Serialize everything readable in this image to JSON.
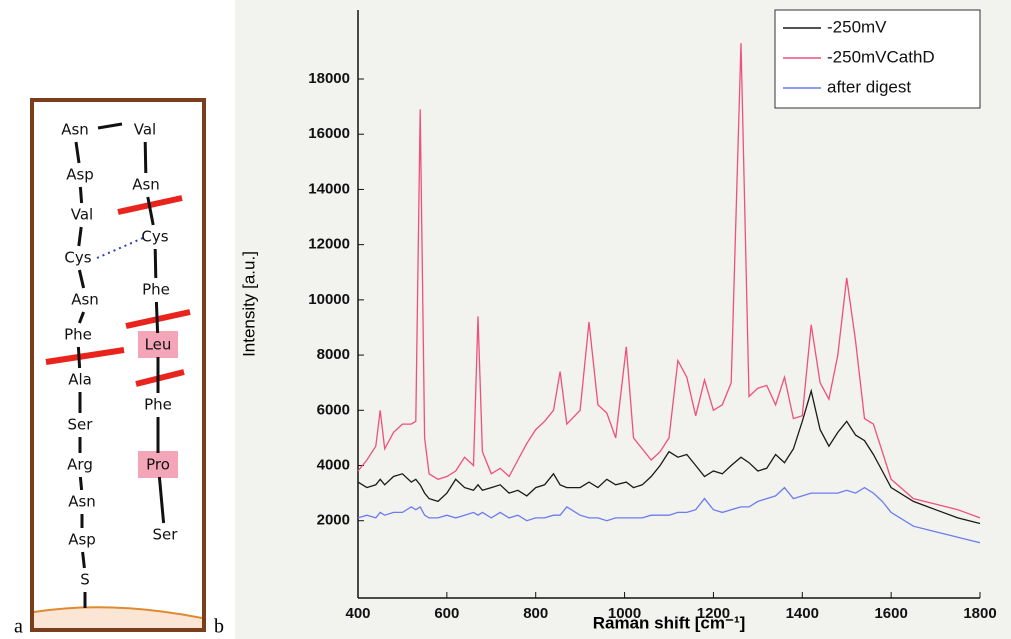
{
  "panel_a": {
    "label": "a",
    "left_chain": [
      "Asn",
      "Asp",
      "Val",
      "Cys",
      "Asn",
      "Phe",
      "Ala",
      "Ser",
      "Arg",
      "Asn",
      "Asp",
      "S"
    ],
    "right_chain": [
      "Val",
      "Asn",
      "Cys",
      "Phe",
      "Leu",
      "Phe",
      "Pro",
      "Ser"
    ]
  },
  "panel_b_label": "b",
  "chart_data": {
    "type": "line",
    "x_label": "Raman shift [cm⁻¹]",
    "y_label": "Intensity [a.u.]",
    "x": [
      400,
      420,
      440,
      450,
      460,
      480,
      500,
      520,
      530,
      540,
      550,
      560,
      580,
      600,
      620,
      640,
      660,
      670,
      680,
      700,
      720,
      740,
      760,
      780,
      800,
      820,
      840,
      855,
      870,
      900,
      920,
      940,
      960,
      980,
      1004,
      1020,
      1040,
      1060,
      1080,
      1100,
      1120,
      1140,
      1160,
      1180,
      1200,
      1220,
      1240,
      1262,
      1280,
      1300,
      1320,
      1340,
      1360,
      1380,
      1400,
      1420,
      1440,
      1460,
      1480,
      1500,
      1520,
      1540,
      1560,
      1580,
      1600,
      1650,
      1700,
      1750,
      1800
    ],
    "series": [
      {
        "name": "-250mV",
        "color": "#1a1a1a",
        "values": [
          3400,
          3200,
          3300,
          3500,
          3300,
          3600,
          3700,
          3400,
          3500,
          3300,
          3000,
          2800,
          2700,
          3000,
          3500,
          3200,
          3100,
          3300,
          3100,
          3200,
          3300,
          3000,
          3100,
          2900,
          3200,
          3300,
          3700,
          3300,
          3200,
          3200,
          3400,
          3200,
          3500,
          3300,
          3400,
          3200,
          3300,
          3600,
          4000,
          4500,
          4300,
          4400,
          4000,
          3600,
          3800,
          3700,
          4000,
          4300,
          4100,
          3800,
          3900,
          4400,
          4100,
          4600,
          5600,
          6700,
          5300,
          4700,
          5200,
          5600,
          5100,
          4900,
          4400,
          3800,
          3200,
          2700,
          2400,
          2100,
          1900
        ]
      },
      {
        "name": "-250mVCathD",
        "color": "#f0507a",
        "values": [
          3800,
          4200,
          4700,
          6000,
          4600,
          5200,
          5500,
          5500,
          5600,
          16900,
          5000,
          3700,
          3500,
          3600,
          3800,
          4300,
          4000,
          9400,
          4500,
          3700,
          3900,
          3600,
          4200,
          4800,
          5300,
          5600,
          6000,
          7400,
          5500,
          6000,
          9200,
          6200,
          5900,
          5000,
          8300,
          5000,
          4600,
          4200,
          4500,
          5000,
          7800,
          7200,
          5800,
          7100,
          6000,
          6200,
          7000,
          19300,
          6500,
          6800,
          6900,
          6200,
          7200,
          5700,
          5800,
          9100,
          7000,
          6400,
          8000,
          10800,
          8500,
          5700,
          5500,
          4500,
          3500,
          2800,
          2600,
          2400,
          2100
        ]
      },
      {
        "name": "after digest",
        "color": "#6b7cf0",
        "values": [
          2100,
          2200,
          2100,
          2300,
          2200,
          2300,
          2300,
          2500,
          2400,
          2500,
          2200,
          2100,
          2100,
          2200,
          2100,
          2200,
          2300,
          2200,
          2300,
          2100,
          2300,
          2100,
          2200,
          2000,
          2100,
          2100,
          2200,
          2200,
          2500,
          2200,
          2100,
          2100,
          2000,
          2100,
          2100,
          2100,
          2100,
          2200,
          2200,
          2200,
          2300,
          2300,
          2400,
          2800,
          2400,
          2300,
          2400,
          2500,
          2500,
          2700,
          2800,
          2900,
          3200,
          2800,
          2900,
          3000,
          3000,
          3000,
          3000,
          3100,
          3000,
          3200,
          3000,
          2700,
          2300,
          1800,
          1600,
          1400,
          1200
        ]
      }
    ],
    "xlim": [
      400,
      1800
    ],
    "xticks": [
      400,
      600,
      800,
      1000,
      1200,
      1400,
      1600,
      1800
    ],
    "ylim": [
      -800,
      20500
    ],
    "yticks": [
      2000,
      4000,
      6000,
      8000,
      10000,
      12000,
      14000,
      16000,
      18000
    ],
    "grid": false,
    "legend": "upper right"
  }
}
